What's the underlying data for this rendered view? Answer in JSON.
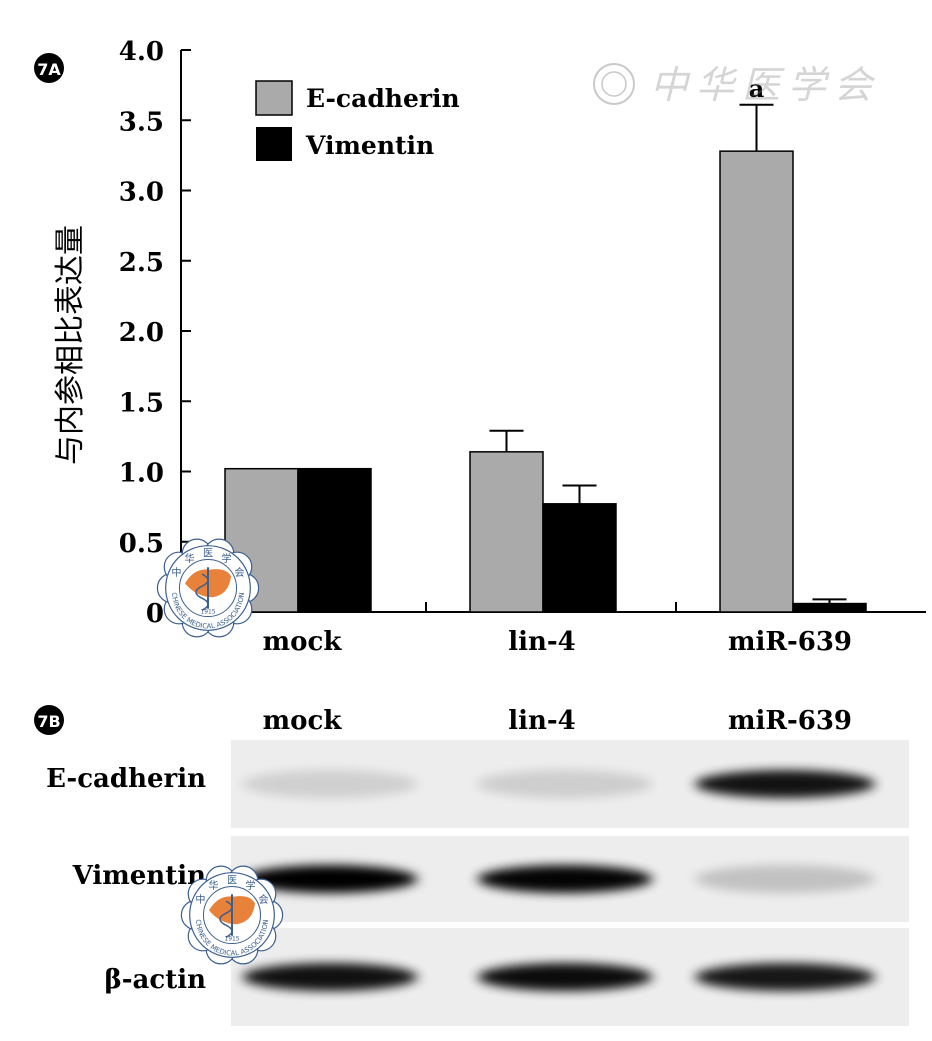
{
  "panel_a_label": "7A",
  "panel_b_label": "7B",
  "chart_data": {
    "type": "bar",
    "title": "",
    "xlabel": "",
    "ylabel": "与内参相比表达量",
    "ylim": [
      0,
      4.0
    ],
    "yticks": [
      "0",
      "0.5",
      "1.0",
      "1.5",
      "2.0",
      "2.5",
      "3.0",
      "3.5",
      "4.0"
    ],
    "categories": [
      "mock",
      "lin-4",
      "miR-639"
    ],
    "series": [
      {
        "name": "E-cadherin",
        "color": "#aaaaaa",
        "values": [
          1.02,
          1.14,
          3.28
        ],
        "errors": [
          0,
          0.15,
          0.33
        ]
      },
      {
        "name": "Vimentin",
        "color": "#000000",
        "values": [
          1.02,
          0.77,
          0.06
        ],
        "errors": [
          0,
          0.13,
          0.03
        ]
      }
    ],
    "annotations": [
      {
        "category": "miR-639",
        "series": "E-cadherin",
        "text": "a"
      }
    ],
    "legend_position": "top-left",
    "grid": false
  },
  "blot": {
    "lanes": [
      "mock",
      "lin-4",
      "miR-639"
    ],
    "rows": [
      {
        "label": "E-cadherin",
        "intensities": [
          0.12,
          0.13,
          0.92
        ]
      },
      {
        "label": "Vimentin",
        "intensities": [
          1.0,
          0.98,
          0.18
        ]
      },
      {
        "label": "β-actin",
        "intensities": [
          0.93,
          0.95,
          0.9
        ]
      }
    ]
  },
  "watermark": {
    "text": "中华医学会",
    "seal_text": "CHINESE MEDICAL ASSOCIATION",
    "seal_chars": [
      "中",
      "华",
      "医",
      "学",
      "会"
    ],
    "seal_year": "1915"
  },
  "colors": {
    "seal_orange": "#e8813a",
    "seal_blue": "#3b5f8f",
    "background": "#ffffff"
  }
}
